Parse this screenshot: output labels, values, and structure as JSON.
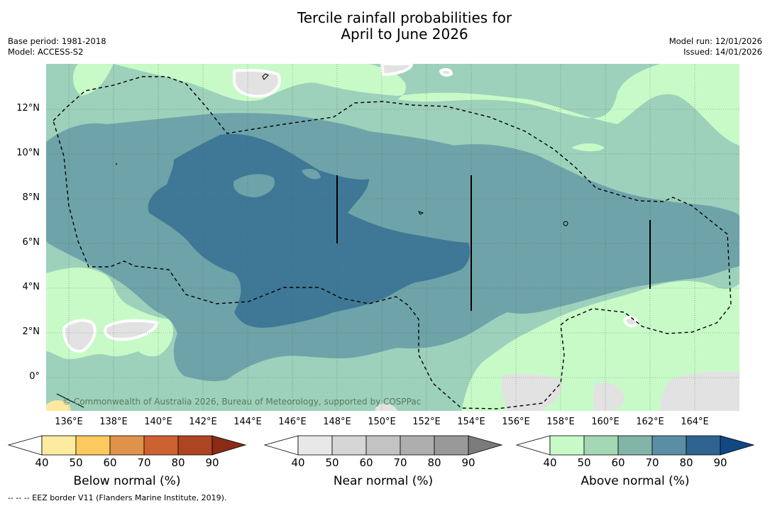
{
  "title_line1": "Tercile rainfall probabilities for",
  "title_line2": "April to June 2026",
  "meta": {
    "base_period": "Base period: 1981-2018",
    "model": "Model: ACCESS-S2",
    "model_run": "Model run: 12/01/2026",
    "issued": "Issued: 14/01/2026"
  },
  "lat_labels": [
    "12°N",
    "10°N",
    "8°N",
    "6°N",
    "4°N",
    "2°N",
    "0°"
  ],
  "lon_labels": [
    "136°E",
    "138°E",
    "140°E",
    "142°E",
    "144°E",
    "146°E",
    "148°E",
    "150°E",
    "152°E",
    "154°E",
    "156°E",
    "158°E",
    "160°E",
    "162°E",
    "164°E"
  ],
  "copyright": "© Commonwealth of Australia 2026, Bureau of Meteorology, supported by COSPPac",
  "colorbars": {
    "below": {
      "label": "Below normal (%)",
      "ticks": [
        "40",
        "50",
        "60",
        "70",
        "80",
        "90"
      ],
      "colors": [
        "#ffffff",
        "#fdeba0",
        "#fbc95e",
        "#e0914a",
        "#cc6132",
        "#ad4522",
        "#8b2a15"
      ]
    },
    "near": {
      "label": "Near normal (%)",
      "ticks": [
        "40",
        "50",
        "60",
        "70",
        "80",
        "90"
      ],
      "colors": [
        "#ffffff",
        "#e8e8e8",
        "#d6d6d6",
        "#c3c3c3",
        "#aeaeae",
        "#999999",
        "#7b7b7b"
      ]
    },
    "above": {
      "label": "Above normal (%)",
      "ticks": [
        "40",
        "50",
        "60",
        "70",
        "80",
        "90"
      ],
      "colors": [
        "#ffffff",
        "#c8fac8",
        "#a4d8b4",
        "#82b4a8",
        "#5a8ea4",
        "#2f6390",
        "#114884"
      ]
    }
  },
  "map_colors": {
    "above_40": "#c8fac8",
    "above_50": "#9dd1bb",
    "above_60": "#6ea3a9",
    "above_70": "#3f7896",
    "near_40": "#e2e2e2",
    "below_40": "#fde9a0"
  },
  "footnote": "--  --  -- EEZ border V11 (Flanders Marine Institute, 2019)."
}
